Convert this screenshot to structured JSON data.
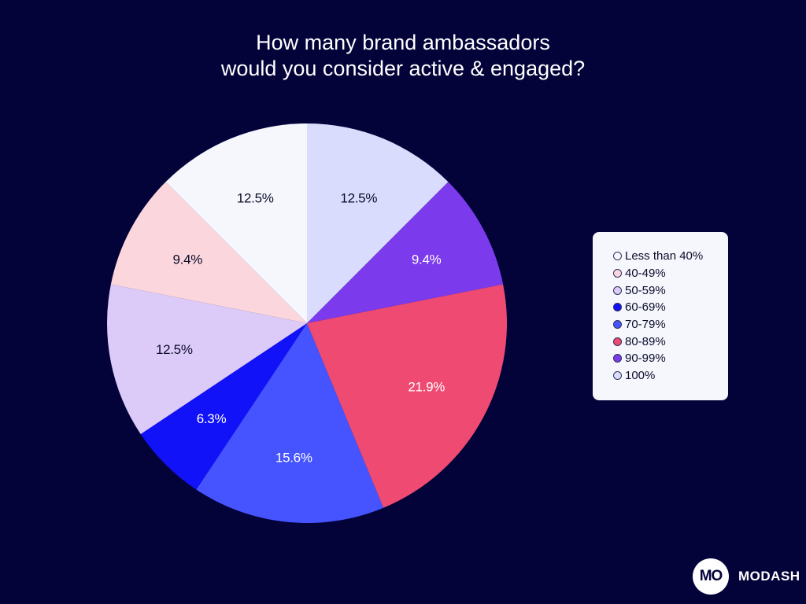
{
  "chart_data": {
    "type": "pie",
    "title_lines": [
      "How many brand ambassadors",
      "would you consider active & engaged?"
    ],
    "start": "top, clockwise",
    "slices": [
      {
        "label": "100%",
        "value": 12.5,
        "value_label": "12.5%",
        "color": "#d9dcfc",
        "text_color": "#0c0c2a"
      },
      {
        "label": "90-99%",
        "value": 9.4,
        "value_label": "9.4%",
        "color": "#7c3aed",
        "text_color": "#ffffff"
      },
      {
        "label": "80-89%",
        "value": 21.9,
        "value_label": "21.9%",
        "color": "#ef4a72",
        "text_color": "#ffffff"
      },
      {
        "label": "70-79%",
        "value": 15.6,
        "value_label": "15.6%",
        "color": "#4654ff",
        "text_color": "#ffffff"
      },
      {
        "label": "60-69%",
        "value": 6.3,
        "value_label": "6.3%",
        "color": "#1212f8",
        "text_color": "#ffffff"
      },
      {
        "label": "50-59%",
        "value": 12.5,
        "value_label": "12.5%",
        "color": "#dccaf8",
        "text_color": "#0c0c2a"
      },
      {
        "label": "40-49%",
        "value": 9.4,
        "value_label": "9.4%",
        "color": "#fcd6dd",
        "text_color": "#0c0c2a"
      },
      {
        "label": "Less than 40%",
        "value": 12.5,
        "value_label": "12.5%",
        "color": "#f5f7fd",
        "text_color": "#0c0c2a"
      }
    ],
    "legend": {
      "placement": "right",
      "items": [
        {
          "label": "Less than 40%",
          "color": "#f5f7fd"
        },
        {
          "label": "40-49%",
          "color": "#fcd6dd"
        },
        {
          "label": "50-59%",
          "color": "#dccaf8"
        },
        {
          "label": "60-69%",
          "color": "#1212f8"
        },
        {
          "label": "70-79%",
          "color": "#4654ff"
        },
        {
          "label": "80-89%",
          "color": "#ef4a72"
        },
        {
          "label": "90-99%",
          "color": "#7c3aed"
        },
        {
          "label": "100%",
          "color": "#d9dcfc"
        }
      ]
    }
  },
  "brand": {
    "logo_text": "MO",
    "name": "MODASH"
  },
  "colors": {
    "background": "#03033a",
    "title": "#ffffff"
  }
}
